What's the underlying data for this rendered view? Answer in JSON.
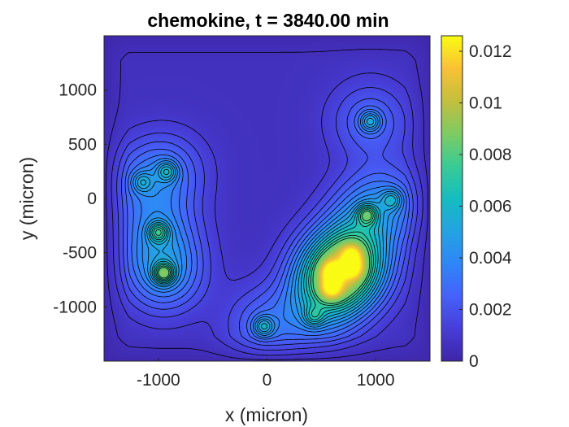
{
  "chart_data": {
    "type": "heatmap",
    "title": "chemokine, t = 3840.00 min",
    "xlabel": "x (micron)",
    "ylabel": "y (micron)",
    "xlim": [
      -1500,
      1500
    ],
    "ylim": [
      -1500,
      1500
    ],
    "x_ticks": [
      -1000,
      0,
      1000
    ],
    "x_tick_labels": [
      "-1000",
      "0",
      "1000"
    ],
    "y_ticks": [
      1000,
      500,
      0,
      -500,
      -1000
    ],
    "y_tick_labels": [
      "1000",
      "500",
      "0",
      "-500",
      "-1000"
    ],
    "colorbar": {
      "colormap": "parula",
      "range": [
        0,
        0.0126
      ],
      "ticks": [
        0,
        0.002,
        0.004,
        0.006,
        0.008,
        0.01,
        0.012
      ],
      "tick_labels": [
        "0",
        "0.002",
        "0.004",
        "0.006",
        "0.008",
        "0.01",
        "0.012"
      ]
    },
    "contour_lines": true,
    "sources": [
      {
        "x": 950,
        "y": 710,
        "peak": 0.0047
      },
      {
        "x": -920,
        "y": 250,
        "peak": 0.0045
      },
      {
        "x": -1150,
        "y": 150,
        "peak": 0.0035
      },
      {
        "x": -1000,
        "y": -310,
        "peak": 0.0058
      },
      {
        "x": -950,
        "y": -690,
        "peak": 0.0078
      },
      {
        "x": 920,
        "y": -150,
        "peak": 0.0058
      },
      {
        "x": 600,
        "y": -680,
        "peak": 0.0083
      },
      {
        "x": 590,
        "y": -830,
        "peak": 0.0075
      },
      {
        "x": 780,
        "y": -520,
        "peak": 0.0068
      },
      {
        "x": 790,
        "y": -640,
        "peak": 0.0068
      },
      {
        "x": 1150,
        "y": -10,
        "peak": 0.0038
      },
      {
        "x": -30,
        "y": -1180,
        "peak": 0.0048
      },
      {
        "x": 430,
        "y": -1090,
        "peak": 0.0036
      }
    ],
    "colors": {
      "low": "#3e26a8",
      "high": "#f9fb15",
      "contour": "#000000"
    }
  }
}
